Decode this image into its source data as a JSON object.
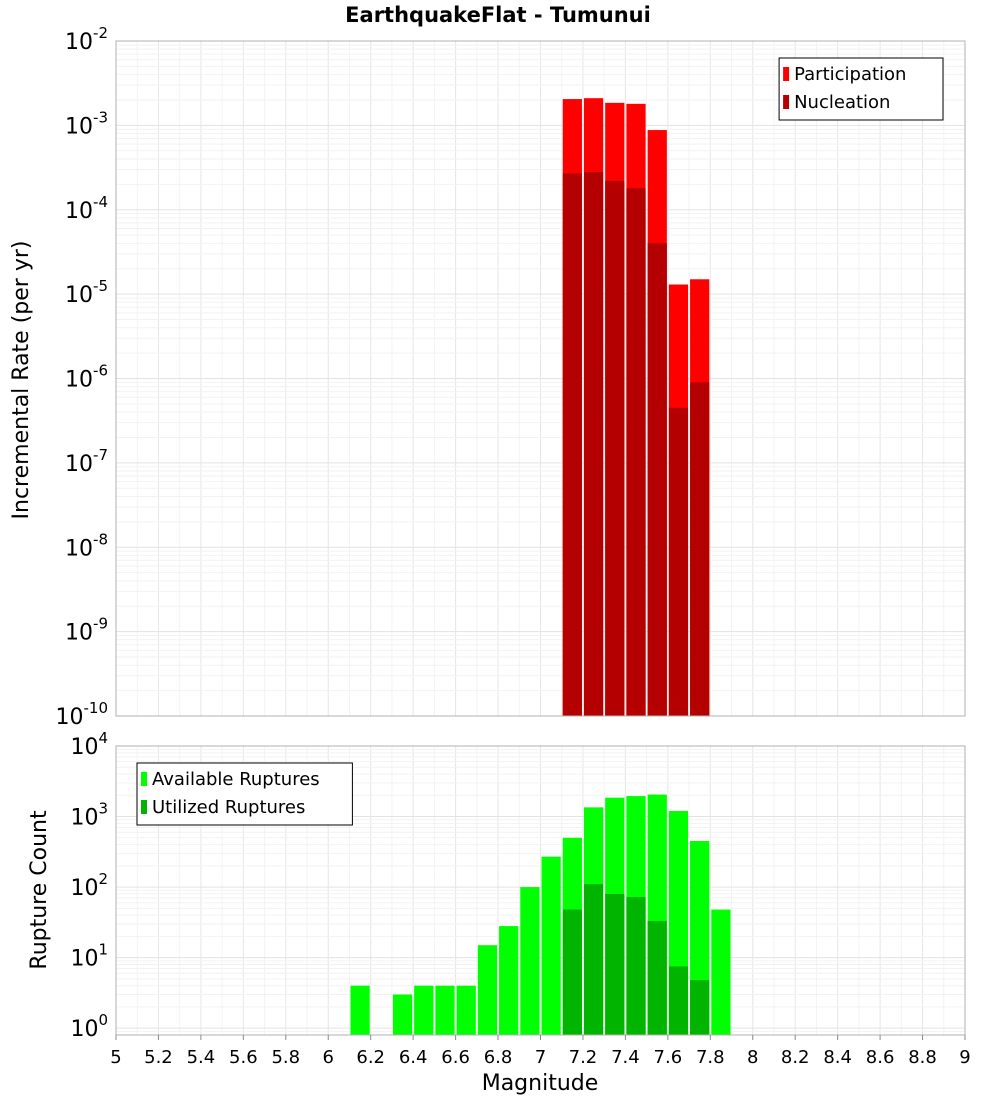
{
  "chart_data": [
    {
      "type": "bar",
      "title": "EarthquakeFlat - Tumunui",
      "xlabel": "",
      "ylabel": "Incremental Rate (per yr)",
      "yscale": "log",
      "ylim": [
        1e-10,
        0.01
      ],
      "xlim": [
        5,
        9
      ],
      "bar_width": 0.1,
      "grid": true,
      "legend_position": "top-right",
      "colors": {
        "Participation": "#ff0000",
        "Nucleation": "#b40000"
      },
      "y_ticks": [
        {
          "base": "10",
          "exp": "-2",
          "v": 0.01
        },
        {
          "base": "10",
          "exp": "-3",
          "v": 0.001
        },
        {
          "base": "10",
          "exp": "-4",
          "v": 0.0001
        },
        {
          "base": "10",
          "exp": "-5",
          "v": 1e-05
        },
        {
          "base": "10",
          "exp": "-6",
          "v": 1e-06
        },
        {
          "base": "10",
          "exp": "-7",
          "v": 1e-07
        },
        {
          "base": "10",
          "exp": "-8",
          "v": 1e-08
        },
        {
          "base": "10",
          "exp": "-9",
          "v": 1e-09
        },
        {
          "base": "10",
          "exp": "-10",
          "v": 1e-10
        }
      ],
      "series": [
        {
          "name": "Participation",
          "x": [
            7.15,
            7.25,
            7.35,
            7.45,
            7.55,
            7.65,
            7.75
          ],
          "values": [
            0.00205,
            0.0021,
            0.00185,
            0.0018,
            0.00088,
            1.3e-05,
            1.5e-05
          ]
        },
        {
          "name": "Nucleation",
          "x": [
            7.15,
            7.25,
            7.35,
            7.45,
            7.55,
            7.65,
            7.75
          ],
          "values": [
            0.00027,
            0.00028,
            0.00022,
            0.00018,
            4e-05,
            4.5e-07,
            9e-07
          ]
        }
      ]
    },
    {
      "type": "bar",
      "title": "",
      "xlabel": "Magnitude",
      "ylabel": "Rupture Count",
      "yscale": "log",
      "ylim": [
        0.8,
        10000
      ],
      "xlim": [
        5,
        9
      ],
      "bar_width": 0.1,
      "grid": true,
      "legend_position": "top-left",
      "colors": {
        "Available Ruptures": "#00ff00",
        "Utilized Ruptures": "#00b400"
      },
      "y_ticks": [
        {
          "base": "10",
          "exp": "4",
          "v": 10000
        },
        {
          "base": "10",
          "exp": "3",
          "v": 1000
        },
        {
          "base": "10",
          "exp": "2",
          "v": 100
        },
        {
          "base": "10",
          "exp": "1",
          "v": 10
        },
        {
          "base": "10",
          "exp": "0",
          "v": 1
        }
      ],
      "x_ticks": [
        "5",
        "5.2",
        "5.4",
        "5.6",
        "5.8",
        "6",
        "6.2",
        "6.4",
        "6.6",
        "6.8",
        "7",
        "7.2",
        "7.4",
        "7.6",
        "7.8",
        "8",
        "8.2",
        "8.4",
        "8.6",
        "8.8",
        "9"
      ],
      "series": [
        {
          "name": "Available Ruptures",
          "x": [
            6.15,
            6.35,
            6.45,
            6.55,
            6.65,
            6.75,
            6.85,
            6.95,
            7.05,
            7.15,
            7.25,
            7.35,
            7.45,
            7.55,
            7.65,
            7.75,
            7.85
          ],
          "values": [
            4,
            3,
            4,
            4,
            4,
            15,
            28,
            100,
            270,
            500,
            1350,
            1850,
            1950,
            2050,
            1200,
            450,
            48
          ]
        },
        {
          "name": "Utilized Ruptures",
          "x": [
            7.15,
            7.25,
            7.35,
            7.45,
            7.55,
            7.65,
            7.75
          ],
          "values": [
            48,
            110,
            80,
            72,
            33,
            7.5,
            4.8
          ]
        }
      ]
    }
  ]
}
